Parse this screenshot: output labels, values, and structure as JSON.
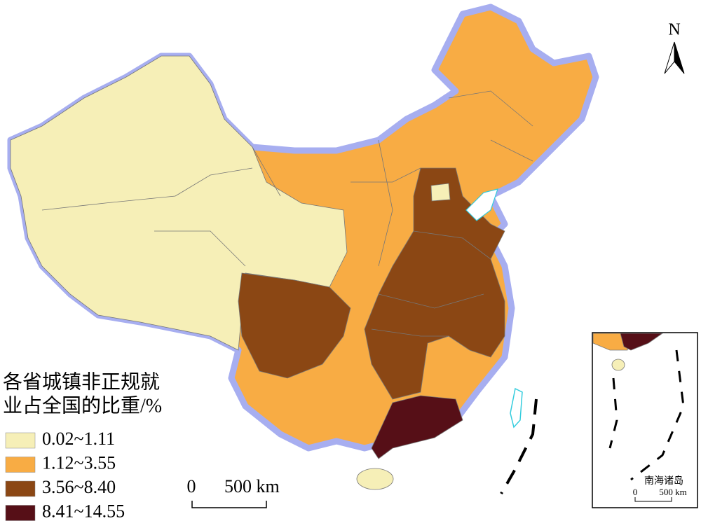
{
  "north": "N",
  "legend": {
    "title_lines": [
      "各省城镇非正规就",
      "业占全国的比重/%"
    ],
    "items": [
      {
        "label": "0.02~1.11",
        "color": "#f6efb7"
      },
      {
        "label": "1.12~3.55",
        "color": "#f8ac44"
      },
      {
        "label": "3.56~8.40",
        "color": "#8b4714"
      },
      {
        "label": "8.41~14.55",
        "color": "#560f17"
      }
    ]
  },
  "scale_bar": {
    "zero": "0",
    "distance": "500 km"
  },
  "inset": {
    "label": "南海诸岛",
    "scale_zero": "0",
    "scale_distance": "500 km"
  }
}
